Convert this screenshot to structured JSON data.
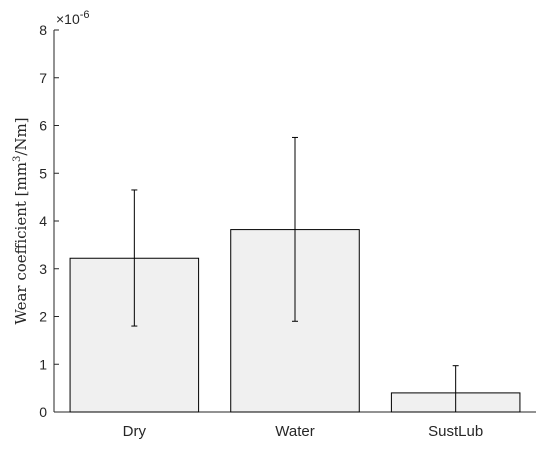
{
  "chart_data": {
    "type": "bar",
    "title": "",
    "xlabel": "",
    "ylabel": {
      "prefix": "Wear coefficient [mm",
      "exponent": "3",
      "suffix": "/Nm]"
    },
    "scale_label": "×10",
    "scale_exponent": "-6",
    "categories": [
      "Dry",
      "Water",
      "SustLub"
    ],
    "values": [
      3.22,
      3.82,
      0.4
    ],
    "error_low": [
      1.8,
      1.9,
      0.0
    ],
    "error_high": [
      4.65,
      5.75,
      0.97
    ],
    "ylim": [
      0,
      8
    ],
    "yticks": [
      "0",
      "1",
      "2",
      "3",
      "4",
      "5",
      "6",
      "7",
      "8"
    ],
    "grid": false,
    "legend": "none",
    "colors": {
      "bar_fill": "#f0f0f0",
      "bar_edge": "#000000",
      "axis": "#262626",
      "error_bar": "#000000"
    }
  }
}
